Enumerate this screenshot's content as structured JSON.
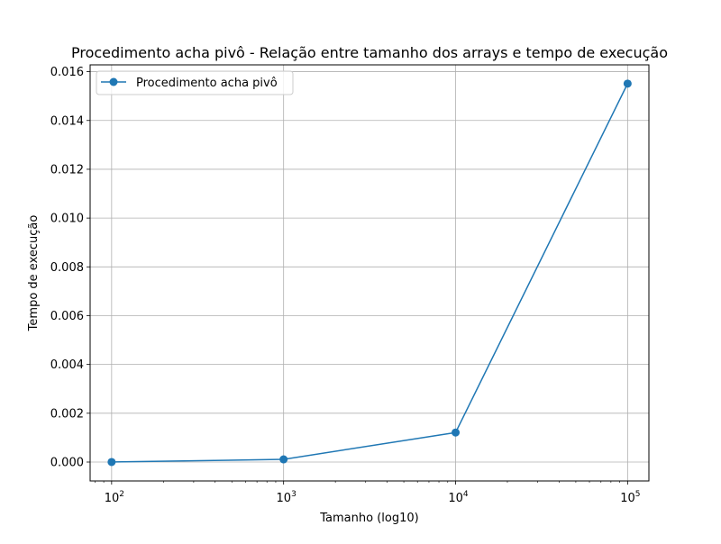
{
  "chart_data": {
    "type": "line",
    "title": "Procedimento acha pivô - Relação entre tamanho dos arrays e tempo de execução",
    "xlabel": "Tamanho (log10)",
    "ylabel": "Tempo de execução",
    "xscale": "log",
    "xlim": [
      75,
      133000
    ],
    "ylim": [
      -0.000775,
      0.01628
    ],
    "grid": true,
    "legend_position": "upper-left",
    "x_ticks": [
      {
        "value": 100,
        "base": "10",
        "exp": "2"
      },
      {
        "value": 1000,
        "base": "10",
        "exp": "3"
      },
      {
        "value": 10000,
        "base": "10",
        "exp": "4"
      },
      {
        "value": 100000,
        "base": "10",
        "exp": "5"
      }
    ],
    "y_ticks": [
      {
        "value": 0.0,
        "label": "0.000"
      },
      {
        "value": 0.002,
        "label": "0.002"
      },
      {
        "value": 0.004,
        "label": "0.004"
      },
      {
        "value": 0.006,
        "label": "0.006"
      },
      {
        "value": 0.008,
        "label": "0.008"
      },
      {
        "value": 0.01,
        "label": "0.010"
      },
      {
        "value": 0.012,
        "label": "0.012"
      },
      {
        "value": 0.014,
        "label": "0.014"
      },
      {
        "value": 0.016,
        "label": "0.016"
      }
    ],
    "series": [
      {
        "name": "Procedimento acha pivô",
        "color": "#1f77b4",
        "marker": "circle",
        "x": [
          100,
          1000,
          10000,
          100000
        ],
        "y": [
          2.5e-06,
          0.00011,
          0.00121,
          0.01551
        ]
      }
    ]
  }
}
